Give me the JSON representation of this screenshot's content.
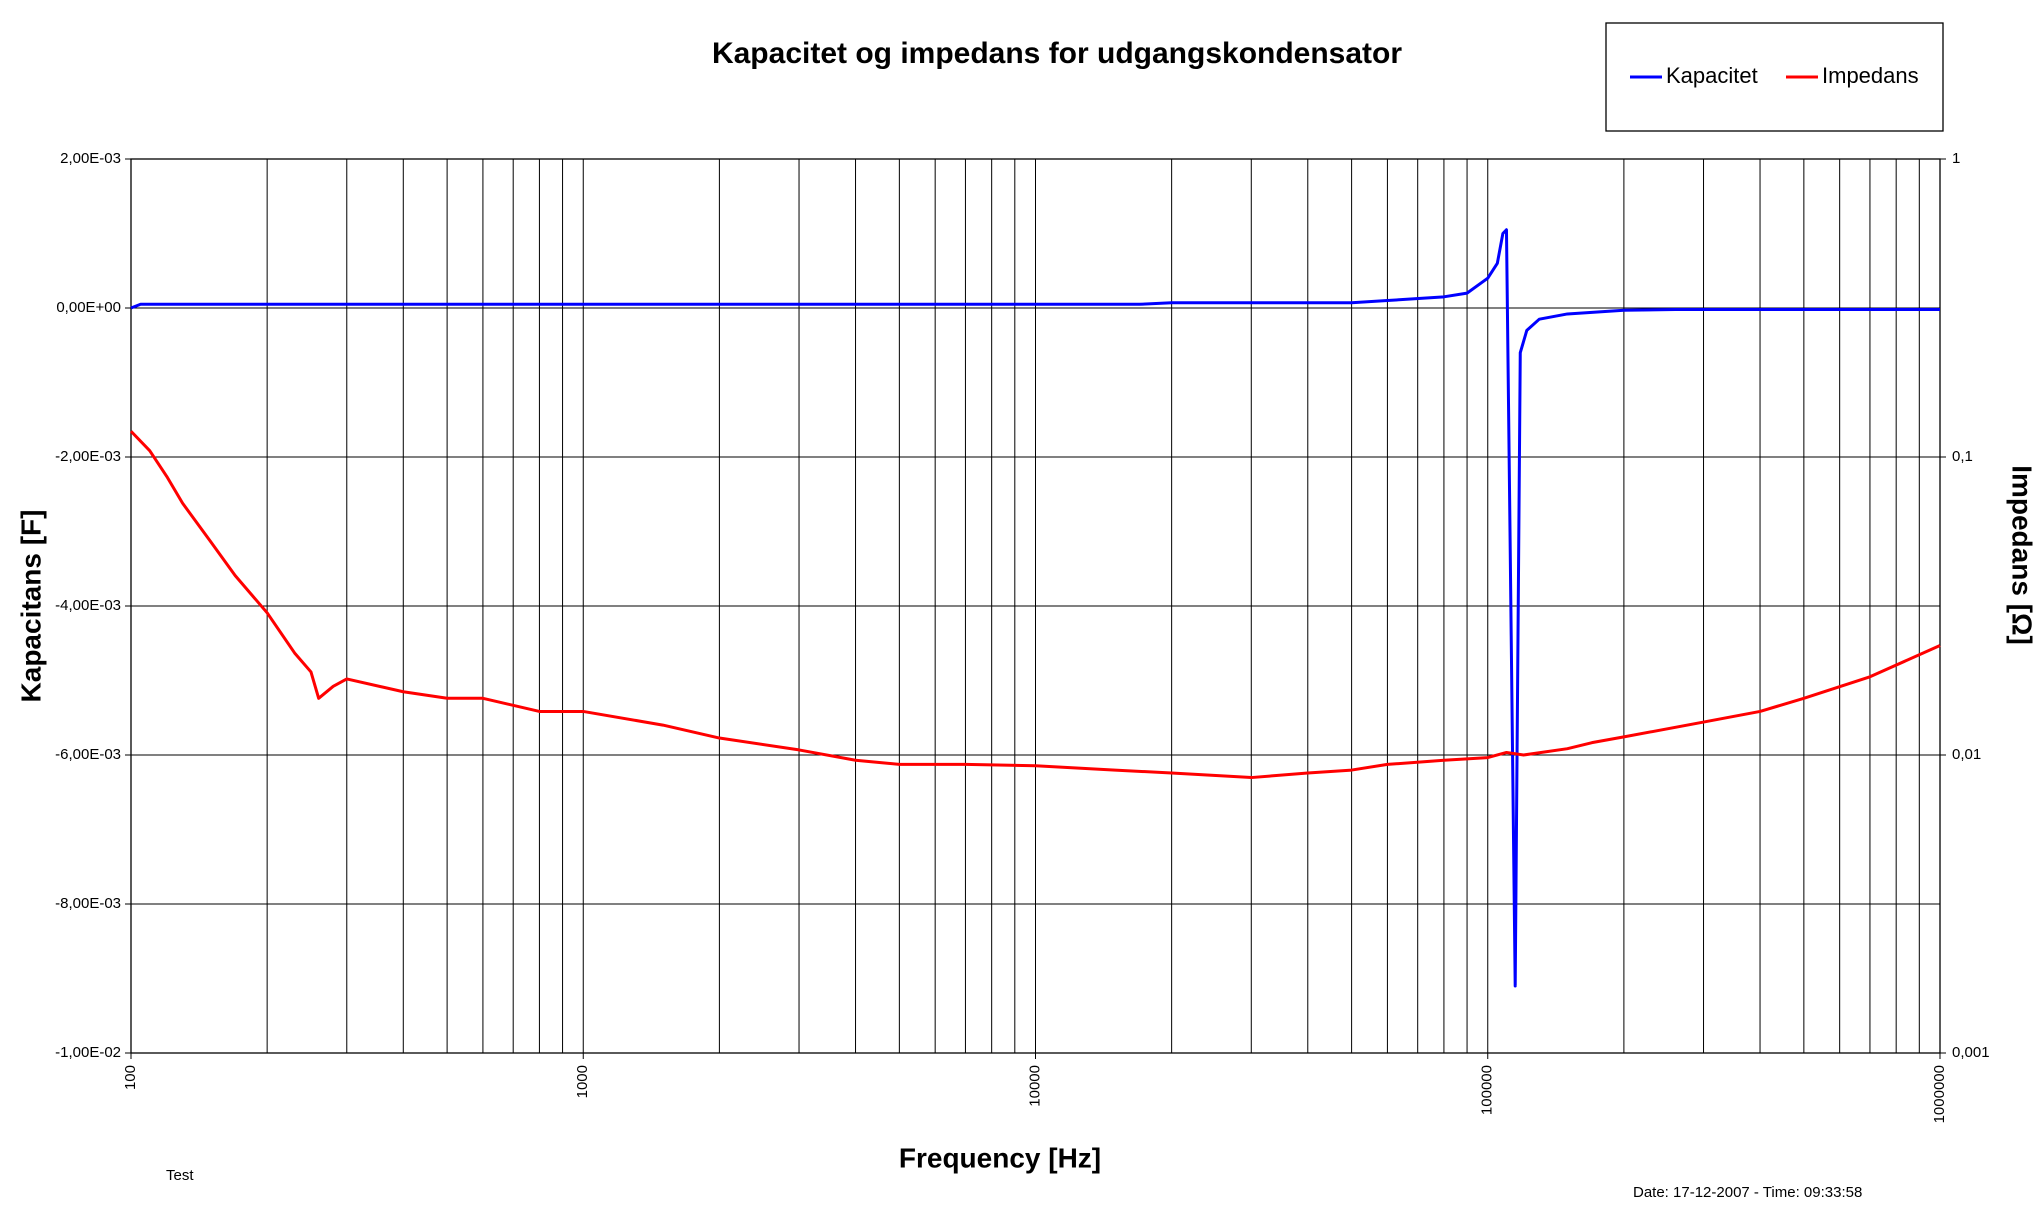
{
  "chart_data": {
    "type": "line",
    "title": "Kapacitet og impedans for udgangskondensator",
    "xlabel": "Frequency [Hz]",
    "ylabel": "Kapacitans [F]",
    "y2label": "Impedans [Ω]",
    "xscale": "log",
    "y2scale": "log",
    "grid": true,
    "legend": "top-right",
    "xlim": [
      100,
      1000000
    ],
    "xticks": [
      100,
      1000,
      10000,
      100000,
      1000000
    ],
    "xminorticks": [
      200,
      300,
      400,
      500,
      600,
      700,
      800,
      900,
      2000,
      3000,
      4000,
      5000,
      6000,
      7000,
      8000,
      9000,
      20000,
      30000,
      40000,
      50000,
      60000,
      70000,
      80000,
      90000,
      200000,
      300000,
      400000,
      500000,
      600000,
      700000,
      800000,
      900000
    ],
    "ylim": [
      -0.01,
      0.002
    ],
    "yticks": [
      {
        "value": 0.002,
        "label": "2,00E-03"
      },
      {
        "value": 0,
        "label": "0,00E+00"
      },
      {
        "value": -0.002,
        "label": "-2,00E-03"
      },
      {
        "value": -0.004,
        "label": "-4,00E-03"
      },
      {
        "value": -0.006,
        "label": "-6,00E-03"
      },
      {
        "value": -0.008,
        "label": "-8,00E-03"
      },
      {
        "value": -0.01,
        "label": "-1,00E-02"
      }
    ],
    "y2lim": [
      0.001,
      1
    ],
    "y2ticks": [
      1,
      {
        "value": 0.1,
        "label": "0,1"
      },
      {
        "value": 0.01,
        "label": "0,01"
      },
      {
        "value": 0.001,
        "label": "0,001"
      }
    ],
    "series": [
      {
        "name": "Kapacitet",
        "color": "#0000ff",
        "x": [
          100,
          105,
          1000,
          10000,
          17000,
          20000,
          50000,
          60000,
          80000,
          90000,
          100000,
          105000,
          108000,
          110000,
          112000,
          115000,
          118000,
          122000,
          130000,
          150000,
          200000,
          260000,
          1000000
        ],
        "values": [
          0,
          5e-05,
          5e-05,
          5e-05,
          5e-05,
          7e-05,
          7e-05,
          0.0001,
          0.00015,
          0.0002,
          0.0004,
          0.0006,
          0.001,
          0.00105,
          -0.003,
          -0.0091,
          -0.0006,
          -0.0003,
          -0.00015,
          -8e-05,
          -3e-05,
          -2e-05,
          -2e-05
        ]
      },
      {
        "name": "Impedans",
        "color": "#ff0000",
        "axis": "y2",
        "x": [
          100,
          110,
          120,
          130,
          150,
          170,
          200,
          230,
          250,
          260,
          280,
          300,
          400,
          500,
          600,
          800,
          1000,
          1500,
          2000,
          3000,
          4000,
          5000,
          7000,
          10000,
          15000,
          20000,
          30000,
          40000,
          50000,
          60000,
          80000,
          100000,
          110000,
          120000,
          150000,
          170000,
          200000,
          300000,
          400000,
          500000,
          700000,
          1000000
        ],
        "values": [
          0.122,
          0.105,
          0.086,
          0.07,
          0.052,
          0.04,
          0.03,
          0.022,
          0.019,
          0.0155,
          0.017,
          0.018,
          0.0163,
          0.0155,
          0.0155,
          0.014,
          0.014,
          0.0126,
          0.0114,
          0.0104,
          0.0096,
          0.0093,
          0.0093,
          0.0092,
          0.0089,
          0.0087,
          0.0084,
          0.0087,
          0.0089,
          0.0093,
          0.0096,
          0.0098,
          0.0102,
          0.01,
          0.0105,
          0.011,
          0.0115,
          0.0129,
          0.014,
          0.0155,
          0.0183,
          0.0233
        ]
      }
    ],
    "note": "Test",
    "timestamp": "Date: 17-12-2007 - Time: 09:33:58"
  }
}
